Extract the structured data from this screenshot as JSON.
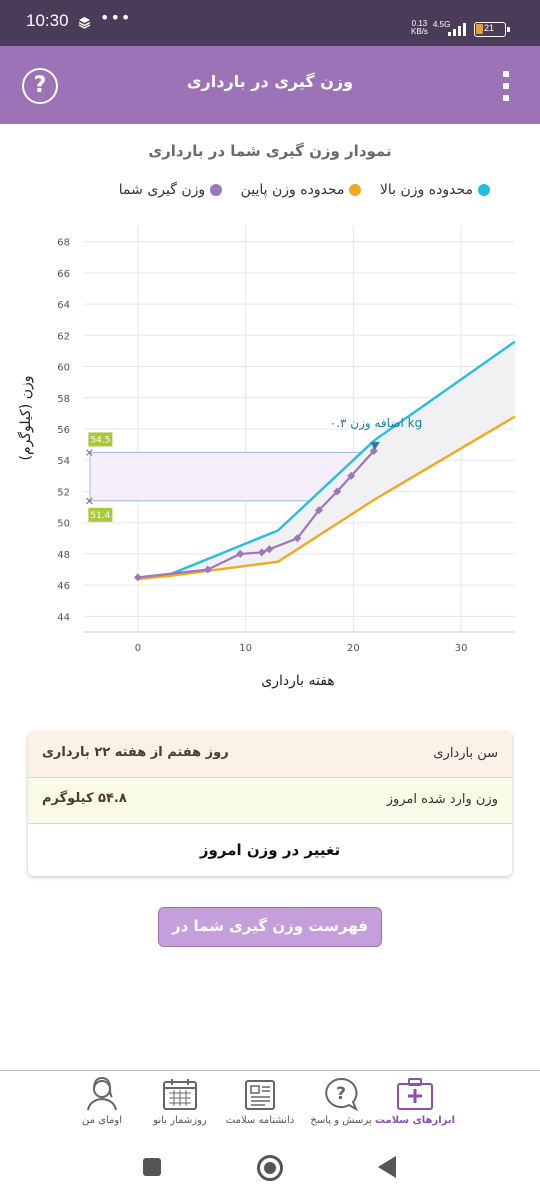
{
  "status_bar": {
    "time": "10:30",
    "dots": "•••",
    "speed_value": "0.13",
    "speed_unit": "KB/s",
    "network": "4.5G",
    "battery": "21"
  },
  "header": {
    "title": "وزن گیری در بارداری",
    "help_icon": "question-circle-icon",
    "menu_icon": "more-vertical-icon"
  },
  "chart_title": "نمودار وزن گیری شما در بارداری",
  "legend": {
    "upper": "محدوده وزن بالا",
    "lower": "محدوده وزن پایین",
    "yours": "وزن گیری شما"
  },
  "colors": {
    "upper": "#26bde3",
    "lower": "#f2a81f",
    "yours": "#9a77bb",
    "accent": "#9b73b6"
  },
  "chart_data": {
    "type": "line",
    "title": "نمودار وزن گیری شما در بارداری",
    "xlabel": "هفته بارداری",
    "ylabel": "وزن (کیلوگرم)",
    "xlim": [
      -5,
      35
    ],
    "ylim": [
      43,
      69
    ],
    "x_ticks": [
      0,
      10,
      20,
      30
    ],
    "y_ticks": [
      44,
      46,
      48,
      50,
      52,
      54,
      56,
      58,
      60,
      62,
      64,
      66,
      68
    ],
    "grid": true,
    "series": [
      {
        "name": "محدوده وزن بالا",
        "x": [
          0,
          3,
          13,
          22,
          35
        ],
        "y": [
          46.4,
          46.7,
          49.5,
          55.3,
          61.6
        ]
      },
      {
        "name": "محدوده وزن پایین",
        "x": [
          0,
          3,
          13,
          22,
          35
        ],
        "y": [
          46.4,
          46.6,
          47.5,
          51.5,
          56.8
        ]
      },
      {
        "name": "وزن گیری شما",
        "x": [
          0,
          6.5,
          9.5,
          11.5,
          12.2,
          14.8,
          16.8,
          18.5,
          19.8,
          21.9
        ],
        "y": [
          46.5,
          47.0,
          48.0,
          48.1,
          48.3,
          49.0,
          50.8,
          52.0,
          53.0,
          54.6
        ]
      }
    ],
    "range_band": {
      "low": 51.4,
      "high": 54.5,
      "low_label": "51.4",
      "high_label": "54.5"
    },
    "marker_week": 22,
    "annotation": "اضافه وزن ۰.۳ kg"
  },
  "info": {
    "age_label": "سن بارداری",
    "age_value": "روز هفتم از هفته ۲۲ بارداری",
    "weight_label": "وزن وارد شده امروز",
    "weight_value": "۵۴.۸ کیلوگرم",
    "change_label": "تغییر در وزن امروز"
  },
  "list_button": "فهرست وزن گیری شما در بارداری",
  "bottom_nav": [
    {
      "label": "ابزارهای سلامت",
      "icon": "medical-kit-icon",
      "active": true
    },
    {
      "label": "پرسش و پاسخ",
      "icon": "question-bubble-icon",
      "active": false
    },
    {
      "label": "دانشنامه سلامت",
      "icon": "newspaper-icon",
      "active": false
    },
    {
      "label": "روزشمار بانو",
      "icon": "calendar-icon",
      "active": false
    },
    {
      "label": "اومای من",
      "icon": "woman-avatar-icon",
      "active": false
    }
  ]
}
